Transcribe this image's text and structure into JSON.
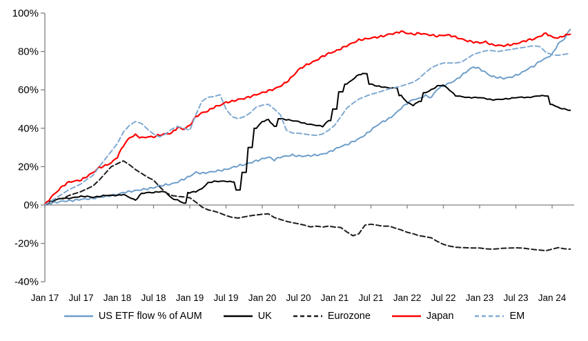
{
  "page": {
    "background": "#FFFFFF"
  },
  "chart_data": {
    "type": "line",
    "title": "",
    "xlabel": "",
    "ylabel": "",
    "ylim": [
      -40,
      100
    ],
    "y_tick_step": 20,
    "grid": "off",
    "axis_crosses_at_zero": true,
    "legend_position": "bottom-center",
    "axis_color": "#808080",
    "text_color": "#000000",
    "x_unit": "months since Jan 2017",
    "x_range_months": 87,
    "x_tick_month_indexes": [
      0,
      6,
      12,
      18,
      24,
      30,
      36,
      42,
      48,
      54,
      60,
      66,
      72,
      78,
      84
    ],
    "x_tick_labels": [
      "Jan 17",
      "Jul 17",
      "Jan 18",
      "Jul 18",
      "Jan 19",
      "Jul 19",
      "Jan 20",
      "Jul 20",
      "Jan 21",
      "Jul 21",
      "Jan 22",
      "Jul 22",
      "Jan 23",
      "Jul 23",
      "Jan 24"
    ],
    "y_ticks": [
      {
        "value": 100,
        "label": "100%"
      },
      {
        "value": 80,
        "label": "80%"
      },
      {
        "value": 60,
        "label": "60%"
      },
      {
        "value": 40,
        "label": "40%"
      },
      {
        "value": 20,
        "label": "20%"
      },
      {
        "value": 0,
        "label": "0%"
      },
      {
        "value": -20,
        "label": "-20%"
      },
      {
        "value": -40,
        "label": "-40%"
      }
    ],
    "series": [
      {
        "name": "US ETF flow % of AUM",
        "color": "#6D9DC9",
        "line_style": "solid",
        "jitter": 0.5,
        "step_threshold": 99,
        "values": [
          0,
          1,
          1.5,
          2,
          2.2,
          2.5,
          3,
          3.2,
          3.5,
          4,
          4.5,
          5,
          5.5,
          6.5,
          7,
          7.5,
          8,
          8.5,
          9,
          10,
          10.5,
          11,
          12,
          13.5,
          15,
          17,
          16.5,
          17,
          17.5,
          18,
          18.5,
          19.5,
          20.5,
          21,
          22,
          23,
          24,
          25,
          23.5,
          25,
          25.5,
          26,
          25.5,
          25.5,
          25.8,
          26,
          26.5,
          27.5,
          29,
          30.5,
          31.5,
          33,
          34.5,
          36.5,
          39,
          41.5,
          43.5,
          45,
          47.5,
          50.5,
          53,
          55,
          55.5,
          57,
          56,
          60.5,
          62,
          63.5,
          65,
          67.5,
          70,
          72,
          71,
          69,
          67,
          66.5,
          66,
          66.5,
          67.5,
          69,
          71,
          72.5,
          75,
          76.5,
          78.5,
          84,
          86.5,
          91.5
        ]
      },
      {
        "name": "UK",
        "color": "#000000",
        "line_style": "solid",
        "jitter": 0.25,
        "step_threshold": 4,
        "values": [
          0,
          2,
          3,
          3.5,
          3.5,
          4,
          4.5,
          4.5,
          4,
          4.5,
          5,
          5,
          5,
          5.5,
          4,
          2.5,
          6,
          6.5,
          6.5,
          7,
          6.8,
          3.5,
          2.5,
          1,
          6.5,
          7,
          8.5,
          11.5,
          12.3,
          12.4,
          12.4,
          12,
          7.8,
          17,
          30,
          40,
          43.5,
          44.5,
          41,
          45,
          44.5,
          44,
          43.5,
          42.5,
          42,
          41.5,
          41,
          44,
          50,
          59,
          63,
          65.5,
          68,
          68.5,
          63,
          62,
          61.5,
          61,
          61,
          57,
          53.5,
          52,
          54,
          58.5,
          60,
          62,
          62.5,
          60,
          57,
          56.5,
          56,
          56,
          56,
          55.5,
          54.8,
          55,
          55.2,
          55.5,
          56,
          56.2,
          56,
          56.5,
          57,
          56.8,
          52.5,
          50.8,
          50,
          49.4
        ]
      },
      {
        "name": "Eurozone",
        "color": "#1A1A1A",
        "line_style": "dashed",
        "jitter": 0,
        "step_threshold": 99,
        "values": [
          0,
          1.5,
          3,
          3.5,
          5,
          6,
          7,
          8.5,
          10,
          13,
          16.5,
          20,
          21.5,
          23,
          21,
          18.5,
          16.5,
          14.5,
          13,
          9.5,
          6.5,
          5,
          4.5,
          4.2,
          3.8,
          1.5,
          -1,
          -2.5,
          -3.2,
          -4.2,
          -5.5,
          -6.4,
          -6.8,
          -6.2,
          -5.6,
          -5.2,
          -4.8,
          -4.6,
          -6.5,
          -7.5,
          -8.5,
          -9.2,
          -9.8,
          -10.5,
          -11.4,
          -11,
          -11.5,
          -11,
          -11.5,
          -11.7,
          -14,
          -16,
          -15,
          -10.5,
          -10,
          -10.5,
          -11,
          -11,
          -12,
          -13,
          -14.2,
          -15,
          -16,
          -16.5,
          -17.1,
          -19,
          -20.5,
          -21.4,
          -22,
          -22.2,
          -22.3,
          -22.4,
          -22.4,
          -22.8,
          -23,
          -22.8,
          -22.5,
          -22.4,
          -22.3,
          -22.4,
          -22.8,
          -23.2,
          -23.5,
          -23.8,
          -23,
          -22.2,
          -22.8,
          -23
        ]
      },
      {
        "name": "Japan",
        "color": "#FF0000",
        "line_style": "solid",
        "jitter": 0.5,
        "step_threshold": 99,
        "values": [
          0,
          4,
          7,
          10,
          12,
          12.5,
          13,
          15,
          17,
          19.5,
          20.5,
          22,
          25,
          31,
          35,
          36.5,
          35,
          35.5,
          35.5,
          36.5,
          37,
          37.5,
          40.5,
          39.5,
          41.5,
          46,
          48,
          49,
          51,
          52,
          53.5,
          54,
          55,
          55.5,
          56.5,
          57.5,
          58.5,
          59.5,
          60.5,
          62,
          64,
          67,
          70.5,
          72.5,
          74,
          75.5,
          77.5,
          79,
          80,
          81.5,
          83,
          84.5,
          86,
          86.5,
          87,
          87.5,
          88,
          89,
          89.5,
          90.5,
          89.5,
          89,
          89.5,
          89,
          88.5,
          88,
          88.5,
          88.5,
          87.5,
          86.5,
          85.5,
          85,
          84.5,
          85,
          83.5,
          83.2,
          83,
          83.5,
          84,
          85,
          86,
          86.5,
          88,
          89.5,
          87.5,
          87,
          88.3,
          89
        ]
      },
      {
        "name": "EM",
        "color": "#7FA9D1",
        "line_style": "dashed",
        "jitter": 0,
        "step_threshold": 99,
        "values": [
          0,
          2,
          4,
          6,
          8,
          9.5,
          11,
          13.5,
          15.5,
          20,
          24,
          28,
          32,
          38,
          41.5,
          43.5,
          42.5,
          39.5,
          37,
          35.5,
          37,
          39.5,
          41,
          40,
          39,
          47,
          54,
          56.2,
          56.5,
          57.5,
          50,
          46,
          45,
          46,
          48,
          51,
          52,
          52.5,
          50,
          47,
          39,
          37.5,
          37.4,
          37,
          36.5,
          36.3,
          37,
          39,
          41.6,
          46,
          50.5,
          53,
          55.2,
          56.5,
          57.7,
          58.5,
          59.5,
          60.5,
          61.2,
          62,
          63,
          64,
          66,
          69,
          71.5,
          73,
          74,
          74,
          74,
          74.5,
          76.5,
          78.5,
          79.5,
          80.4,
          80.5,
          80,
          80.5,
          81,
          81.5,
          82,
          82.5,
          83,
          82.5,
          79.5,
          78.3,
          78,
          78.5,
          79
        ]
      }
    ]
  }
}
